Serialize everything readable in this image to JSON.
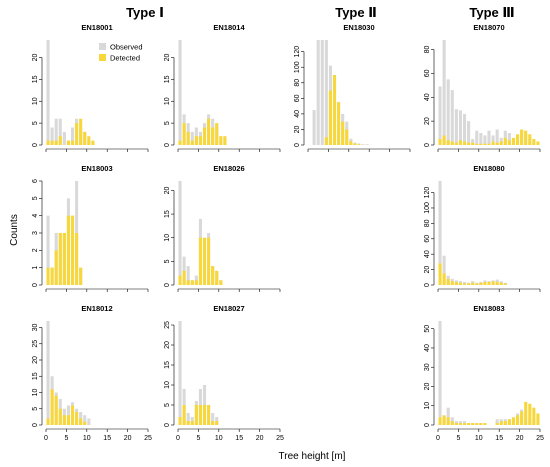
{
  "figure": {
    "groups": [
      "Type Ⅰ",
      "Type Ⅱ",
      "Type Ⅲ"
    ],
    "xlabel": "Tree height [m]",
    "ylabel": "Counts",
    "legend": {
      "observed": "Observed",
      "detected": "Detected"
    },
    "colors": {
      "observed": "#d9d9d9",
      "detected": "#f7d73a"
    }
  },
  "chart_data": [
    {
      "type": "bar",
      "title": "EN18001",
      "xlim": [
        0,
        25
      ],
      "xticks": [
        0,
        5,
        10,
        15,
        20,
        25
      ],
      "yticks": [
        0,
        5,
        10,
        15,
        20
      ],
      "ylim": [
        0,
        24
      ],
      "bin_width": 1,
      "series": [
        {
          "name": "Observed",
          "values": [
            24,
            4,
            6,
            6,
            3,
            1,
            4,
            6,
            4,
            3,
            1,
            0,
            0,
            0,
            0,
            0,
            0,
            0,
            0,
            0,
            0,
            0,
            0,
            0,
            0
          ]
        },
        {
          "name": "Detected",
          "values": [
            1,
            1,
            1,
            2,
            0,
            1,
            1,
            5,
            6,
            3,
            2,
            1,
            0,
            0,
            0,
            0,
            0,
            0,
            0,
            0,
            0,
            0,
            0,
            0,
            0
          ]
        }
      ]
    },
    {
      "type": "bar",
      "title": "EN18014",
      "xlim": [
        0,
        25
      ],
      "xticks": [
        0,
        5,
        10,
        15,
        20,
        25
      ],
      "yticks": [
        0,
        5,
        10,
        15,
        20
      ],
      "ylim": [
        0,
        24
      ],
      "bin_width": 1,
      "series": [
        {
          "name": "Observed",
          "values": [
            24,
            7,
            5,
            3,
            4,
            3,
            5,
            7,
            6,
            5,
            2,
            2,
            0,
            0,
            0,
            0,
            0,
            0,
            0,
            0,
            0,
            0,
            0,
            0,
            0
          ]
        },
        {
          "name": "Detected",
          "values": [
            1,
            5,
            3,
            1,
            2,
            2,
            4,
            6,
            4,
            5,
            2,
            2,
            0,
            0,
            0,
            0,
            0,
            0,
            0,
            0,
            0,
            0,
            0,
            0,
            0
          ]
        }
      ]
    },
    {
      "type": "bar",
      "title": "EN18030",
      "xlim": [
        0,
        25
      ],
      "xticks": [
        0,
        5,
        10,
        15,
        20,
        25
      ],
      "yticks": [
        0,
        20,
        40,
        60,
        80,
        100,
        120
      ],
      "ylim": [
        0,
        135
      ],
      "bin_width": 1,
      "series": [
        {
          "name": "Observed",
          "values": [
            0,
            45,
            135,
            135,
            135,
            102,
            90,
            55,
            40,
            30,
            8,
            3,
            2,
            1,
            1,
            0,
            0,
            0,
            0,
            0,
            0,
            0,
            0,
            0,
            0
          ]
        },
        {
          "name": "Detected",
          "values": [
            0,
            0,
            0,
            0,
            10,
            70,
            90,
            55,
            30,
            20,
            5,
            2,
            1,
            0,
            0,
            0,
            0,
            0,
            0,
            0,
            0,
            0,
            0,
            0,
            0
          ]
        }
      ]
    },
    {
      "type": "bar",
      "title": "EN18070",
      "xlim": [
        0,
        25
      ],
      "xticks": [
        0,
        5,
        10,
        15,
        20,
        25
      ],
      "yticks": [
        0,
        20,
        40,
        60,
        80
      ],
      "ylim": [
        0,
        88
      ],
      "bin_width": 1,
      "series": [
        {
          "name": "Observed",
          "values": [
            49,
            88,
            55,
            46,
            30,
            29,
            26,
            20,
            5,
            12,
            10,
            8,
            12,
            8,
            13,
            6,
            12,
            10,
            5,
            6,
            12,
            9,
            5,
            3,
            2
          ]
        },
        {
          "name": "Detected",
          "values": [
            5,
            8,
            4,
            3,
            2,
            4,
            3,
            2,
            2,
            1,
            1,
            1,
            1,
            3,
            2,
            3,
            6,
            4,
            6,
            9,
            13,
            12,
            9,
            5,
            3
          ]
        }
      ]
    },
    {
      "type": "bar",
      "title": "EN18003",
      "xlim": [
        0,
        25
      ],
      "xticks": [
        0,
        5,
        10,
        15,
        20,
        25
      ],
      "yticks": [
        0,
        1,
        2,
        3,
        4,
        5,
        6
      ],
      "ylim": [
        0,
        6
      ],
      "bin_width": 1,
      "series": [
        {
          "name": "Observed",
          "values": [
            4,
            1,
            3,
            3,
            3,
            5,
            4,
            6,
            1,
            0,
            0,
            0,
            0,
            0,
            0,
            0,
            0,
            0,
            0,
            0,
            0,
            0,
            0,
            0,
            0
          ]
        },
        {
          "name": "Detected",
          "values": [
            1,
            1,
            2,
            3,
            3,
            4,
            4,
            3,
            1,
            0,
            0,
            0,
            0,
            0,
            0,
            0,
            0,
            0,
            0,
            0,
            0,
            0,
            0,
            0,
            0
          ]
        }
      ]
    },
    {
      "type": "bar",
      "title": "EN18026",
      "xlim": [
        0,
        25
      ],
      "xticks": [
        0,
        5,
        10,
        15,
        20,
        25
      ],
      "yticks": [
        0,
        5,
        10,
        15,
        20
      ],
      "ylim": [
        0,
        22
      ],
      "bin_width": 1,
      "series": [
        {
          "name": "Observed",
          "values": [
            22,
            6,
            4,
            1,
            2,
            14,
            10,
            11,
            4,
            3,
            1,
            0,
            0,
            0,
            0,
            0,
            0,
            0,
            0,
            0,
            0,
            0,
            0,
            0,
            0
          ]
        },
        {
          "name": "Detected",
          "values": [
            2,
            3,
            1,
            1,
            1,
            10,
            10,
            10,
            4,
            3,
            1,
            0,
            0,
            0,
            0,
            0,
            0,
            0,
            0,
            0,
            0,
            0,
            0,
            0,
            0
          ]
        }
      ]
    },
    {
      "type": "bar",
      "title": "EN18080",
      "xlim": [
        0,
        25
      ],
      "xticks": [
        0,
        5,
        10,
        15,
        20,
        25
      ],
      "yticks": [
        0,
        20,
        40,
        60,
        80,
        100,
        120
      ],
      "ylim": [
        0,
        135
      ],
      "bin_width": 1,
      "series": [
        {
          "name": "Observed",
          "values": [
            135,
            38,
            12,
            8,
            6,
            5,
            4,
            3,
            5,
            3,
            4,
            6,
            5,
            6,
            7,
            5,
            3,
            0,
            0,
            0,
            0,
            0,
            0,
            0,
            0
          ]
        },
        {
          "name": "Detected",
          "values": [
            28,
            15,
            8,
            5,
            4,
            3,
            2,
            2,
            3,
            2,
            3,
            4,
            4,
            5,
            4,
            3,
            2,
            0,
            0,
            0,
            0,
            0,
            0,
            0,
            0
          ]
        }
      ]
    },
    {
      "type": "bar",
      "title": "EN18012",
      "xlim": [
        0,
        25
      ],
      "xticks": [
        0,
        5,
        10,
        15,
        20,
        25
      ],
      "yticks": [
        0,
        5,
        10,
        15,
        20,
        25,
        30
      ],
      "ylim": [
        0,
        32
      ],
      "bin_width": 1,
      "series": [
        {
          "name": "Observed",
          "values": [
            32,
            15,
            10,
            8,
            5,
            6,
            7,
            5,
            4,
            3,
            2,
            0,
            0,
            0,
            0,
            0,
            0,
            0,
            0,
            0,
            0,
            0,
            0,
            0,
            0
          ]
        },
        {
          "name": "Detected",
          "values": [
            2,
            11,
            9,
            5,
            3,
            3,
            6,
            4,
            2,
            1,
            0,
            0,
            0,
            0,
            0,
            0,
            0,
            0,
            0,
            0,
            0,
            0,
            0,
            0,
            0
          ]
        }
      ]
    },
    {
      "type": "bar",
      "title": "EN18027",
      "xlim": [
        0,
        25
      ],
      "xticks": [
        0,
        5,
        10,
        15,
        20,
        25
      ],
      "yticks": [
        0,
        5,
        10,
        15,
        20,
        25
      ],
      "ylim": [
        0,
        26
      ],
      "bin_width": 1,
      "series": [
        {
          "name": "Observed",
          "values": [
            26,
            9,
            3,
            2,
            6,
            9,
            10,
            5,
            3,
            2,
            0,
            0,
            0,
            0,
            0,
            0,
            0,
            0,
            0,
            0,
            0,
            0,
            0,
            0,
            0
          ]
        },
        {
          "name": "Detected",
          "values": [
            2,
            5,
            1,
            1,
            5,
            5,
            5,
            5,
            1,
            1,
            0,
            0,
            0,
            0,
            0,
            0,
            0,
            0,
            0,
            0,
            0,
            0,
            0,
            0,
            0
          ]
        }
      ]
    },
    {
      "type": "bar",
      "title": "EN18083",
      "xlim": [
        0,
        25
      ],
      "xticks": [
        0,
        5,
        10,
        15,
        20,
        25
      ],
      "yticks": [
        0,
        10,
        20,
        30,
        40,
        50
      ],
      "ylim": [
        0,
        54
      ],
      "bin_width": 1,
      "series": [
        {
          "name": "Observed",
          "values": [
            54,
            5,
            9,
            4,
            2,
            2,
            2,
            1,
            1,
            1,
            1,
            1,
            0,
            0,
            3,
            3,
            3,
            3,
            3,
            6,
            8,
            3,
            3,
            3,
            2
          ]
        },
        {
          "name": "Detected",
          "values": [
            4,
            5,
            4,
            2,
            1,
            1,
            1,
            1,
            1,
            1,
            1,
            1,
            0,
            0,
            1,
            2,
            2,
            3,
            4,
            5,
            7,
            12,
            11,
            9,
            6
          ]
        }
      ]
    }
  ]
}
